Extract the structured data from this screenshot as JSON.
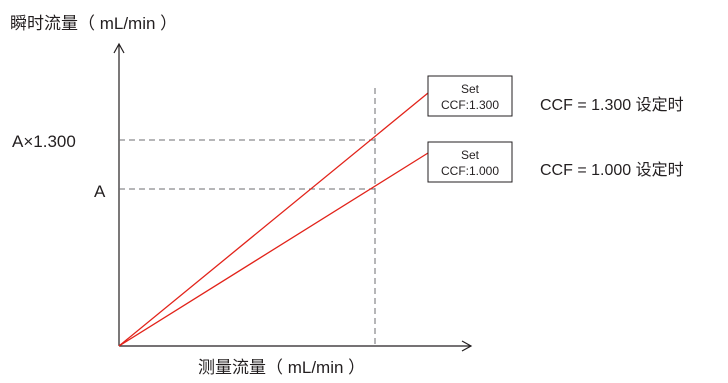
{
  "axes": {
    "y_label": "瞬时流量（ mL/min ）",
    "x_label": "测量流量（ mL/min ）"
  },
  "levels": {
    "upper": "A×1.300",
    "lower": "A"
  },
  "lines": [
    {
      "id": "ccf-1300",
      "box_title": "Set",
      "box_value": "CCF:1.300",
      "caption": "CCF = 1.300 设定时",
      "ccf": 1.3
    },
    {
      "id": "ccf-1000",
      "box_title": "Set",
      "box_value": "CCF:1.000",
      "caption": "CCF = 1.000 设定时",
      "ccf": 1.0
    }
  ],
  "colors": {
    "line": "#e2231a",
    "axis": "#231f20",
    "guide": "#6d6e71"
  }
}
